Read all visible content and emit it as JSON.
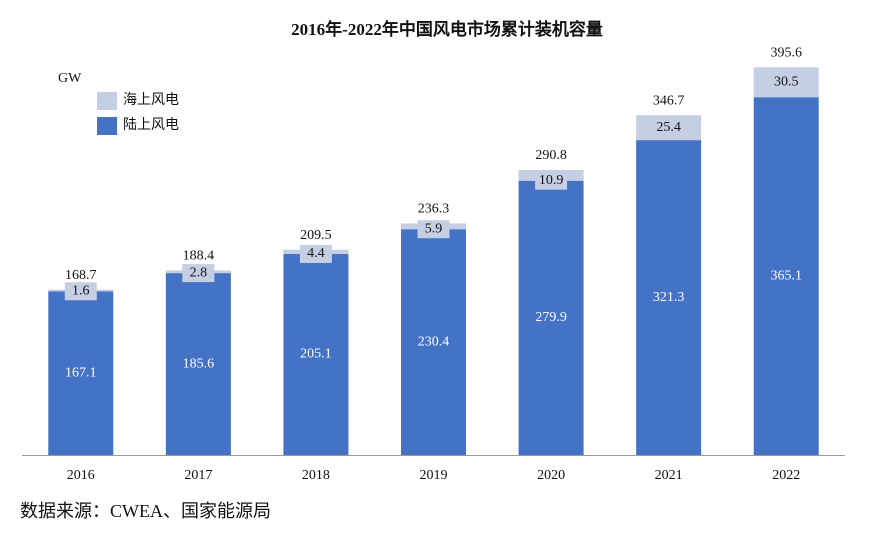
{
  "chart_data": {
    "type": "stacked_bar",
    "title": "2016年-2022年中国风电市场累计装机容量",
    "y_label": "GW",
    "categories": [
      "2016",
      "2017",
      "2018",
      "2019",
      "2020",
      "2021",
      "2022"
    ],
    "series": [
      {
        "name": "陆上风电",
        "color": "#4472c4",
        "values": [
          167.1,
          185.6,
          205.1,
          230.4,
          279.9,
          321.3,
          365.1
        ]
      },
      {
        "name": "海上风电",
        "color": "#c5cee2",
        "values": [
          1.6,
          2.8,
          4.4,
          5.9,
          10.9,
          25.4,
          30.5
        ]
      }
    ],
    "totals": [
      168.7,
      188.4,
      209.5,
      236.3,
      290.8,
      346.7,
      395.6
    ],
    "ylim": [
      0,
      400
    ],
    "source": "数据来源：CWEA、国家能源局"
  }
}
